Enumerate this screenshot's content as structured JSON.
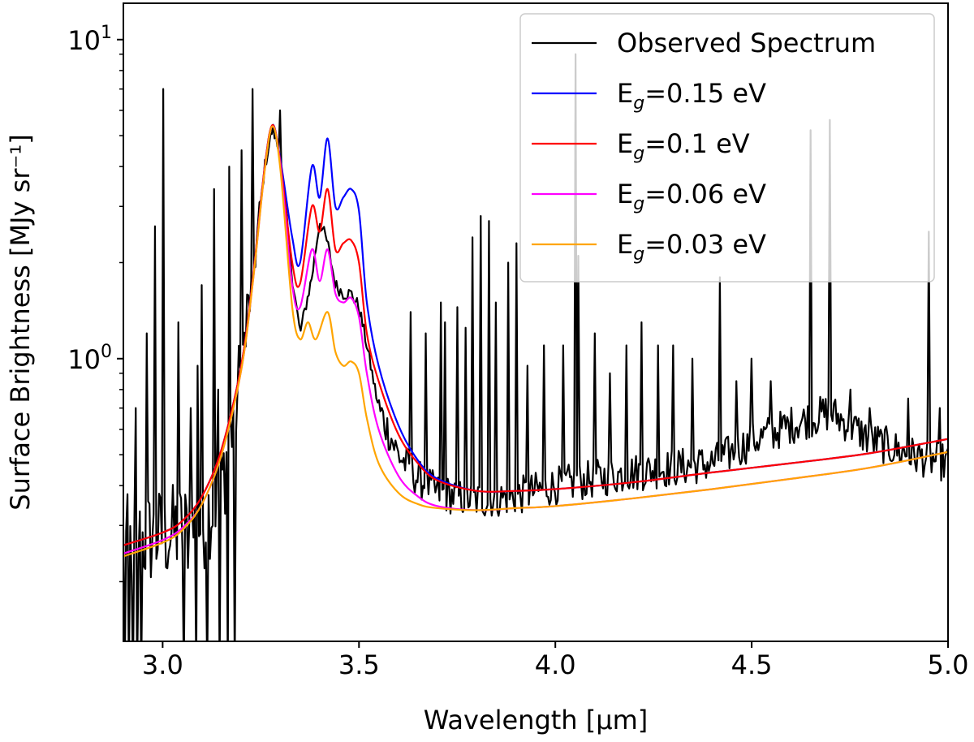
{
  "chart_data": {
    "type": "line",
    "title": "",
    "xlabel": "Wavelength [μm]",
    "ylabel": "Surface Brightness [MJy sr⁻¹]",
    "xlim": [
      2.9,
      5.0
    ],
    "ylim": [
      0.13,
      13.0
    ],
    "yscale": "log",
    "x_ticks": [
      3.0,
      3.5,
      4.0,
      4.5,
      5.0
    ],
    "x_tick_labels": [
      "3.0",
      "3.5",
      "4.0",
      "4.5",
      "5.0"
    ],
    "y_ticks": [
      {
        "value": 1,
        "base": "10",
        "exp": "0"
      },
      {
        "value": 10,
        "base": "10",
        "exp": "1"
      }
    ],
    "legend_position": "top-right",
    "legend": [
      {
        "name": "Observed Spectrum",
        "prefix": "Observed Spectrum",
        "sub": "",
        "suffix": "",
        "color": "#000000"
      },
      {
        "name": "E_g=0.15 eV",
        "prefix": "E",
        "sub": "g",
        "suffix": "=0.15 eV",
        "color": "#0000ff"
      },
      {
        "name": "E_g=0.1 eV",
        "prefix": "E",
        "sub": "g",
        "suffix": "=0.1 eV",
        "color": "#ff0000"
      },
      {
        "name": "E_g=0.06 eV",
        "prefix": "E",
        "sub": "g",
        "suffix": "=0.06 eV",
        "color": "#ff00ff"
      },
      {
        "name": "E_g=0.03 eV",
        "prefix": "E",
        "sub": "g",
        "suffix": "=0.03 eV",
        "color": "#ffa500"
      }
    ],
    "series": [
      {
        "name": "E_g=0.15 eV",
        "color": "#0000ff",
        "points": [
          [
            2.9,
            0.26
          ],
          [
            3.0,
            0.285
          ],
          [
            3.05,
            0.31
          ],
          [
            3.1,
            0.37
          ],
          [
            3.15,
            0.52
          ],
          [
            3.2,
            0.95
          ],
          [
            3.23,
            1.8
          ],
          [
            3.26,
            4.0
          ],
          [
            3.28,
            5.4
          ],
          [
            3.3,
            4.2
          ],
          [
            3.33,
            2.4
          ],
          [
            3.35,
            2.0
          ],
          [
            3.38,
            4.0
          ],
          [
            3.4,
            3.2
          ],
          [
            3.42,
            4.9
          ],
          [
            3.44,
            3.0
          ],
          [
            3.46,
            3.2
          ],
          [
            3.48,
            3.4
          ],
          [
            3.5,
            2.9
          ],
          [
            3.52,
            1.5
          ],
          [
            3.55,
            0.95
          ],
          [
            3.6,
            0.62
          ],
          [
            3.65,
            0.48
          ],
          [
            3.7,
            0.42
          ],
          [
            3.8,
            0.385
          ],
          [
            3.9,
            0.385
          ],
          [
            4.0,
            0.39
          ],
          [
            4.2,
            0.41
          ],
          [
            4.4,
            0.44
          ],
          [
            4.6,
            0.47
          ],
          [
            4.8,
            0.505
          ],
          [
            5.0,
            0.56
          ]
        ]
      },
      {
        "name": "E_g=0.1 eV",
        "color": "#ff0000",
        "points": [
          [
            2.9,
            0.26
          ],
          [
            3.0,
            0.285
          ],
          [
            3.05,
            0.31
          ],
          [
            3.1,
            0.37
          ],
          [
            3.15,
            0.52
          ],
          [
            3.2,
            0.95
          ],
          [
            3.23,
            1.8
          ],
          [
            3.26,
            4.0
          ],
          [
            3.28,
            5.4
          ],
          [
            3.3,
            4.1
          ],
          [
            3.33,
            2.0
          ],
          [
            3.35,
            1.72
          ],
          [
            3.38,
            3.0
          ],
          [
            3.4,
            2.5
          ],
          [
            3.42,
            3.4
          ],
          [
            3.44,
            2.2
          ],
          [
            3.46,
            2.3
          ],
          [
            3.48,
            2.35
          ],
          [
            3.5,
            2.0
          ],
          [
            3.52,
            1.2
          ],
          [
            3.55,
            0.85
          ],
          [
            3.6,
            0.58
          ],
          [
            3.65,
            0.47
          ],
          [
            3.7,
            0.415
          ],
          [
            3.8,
            0.385
          ],
          [
            3.9,
            0.385
          ],
          [
            4.0,
            0.39
          ],
          [
            4.2,
            0.41
          ],
          [
            4.4,
            0.44
          ],
          [
            4.6,
            0.47
          ],
          [
            4.8,
            0.505
          ],
          [
            5.0,
            0.56
          ]
        ]
      },
      {
        "name": "E_g=0.06 eV",
        "color": "#ff00ff",
        "points": [
          [
            2.9,
            0.245
          ],
          [
            3.0,
            0.27
          ],
          [
            3.05,
            0.295
          ],
          [
            3.1,
            0.35
          ],
          [
            3.15,
            0.5
          ],
          [
            3.2,
            0.92
          ],
          [
            3.23,
            1.75
          ],
          [
            3.26,
            3.9
          ],
          [
            3.28,
            5.35
          ],
          [
            3.3,
            4.0
          ],
          [
            3.33,
            1.7
          ],
          [
            3.35,
            1.45
          ],
          [
            3.38,
            2.2
          ],
          [
            3.4,
            1.75
          ],
          [
            3.42,
            2.2
          ],
          [
            3.44,
            1.6
          ],
          [
            3.46,
            1.5
          ],
          [
            3.48,
            1.55
          ],
          [
            3.5,
            1.35
          ],
          [
            3.52,
            0.9
          ],
          [
            3.55,
            0.6
          ],
          [
            3.6,
            0.43
          ],
          [
            3.65,
            0.37
          ],
          [
            3.7,
            0.345
          ],
          [
            3.8,
            0.335
          ],
          [
            3.9,
            0.34
          ],
          [
            4.0,
            0.345
          ],
          [
            4.2,
            0.365
          ],
          [
            4.4,
            0.39
          ],
          [
            4.6,
            0.42
          ],
          [
            4.8,
            0.455
          ],
          [
            5.0,
            0.51
          ]
        ]
      },
      {
        "name": "E_g=0.03 eV",
        "color": "#ffa500",
        "points": [
          [
            2.9,
            0.24
          ],
          [
            3.0,
            0.265
          ],
          [
            3.05,
            0.29
          ],
          [
            3.1,
            0.35
          ],
          [
            3.15,
            0.5
          ],
          [
            3.2,
            0.92
          ],
          [
            3.23,
            1.75
          ],
          [
            3.26,
            3.9
          ],
          [
            3.28,
            5.35
          ],
          [
            3.3,
            3.9
          ],
          [
            3.33,
            1.45
          ],
          [
            3.35,
            1.15
          ],
          [
            3.37,
            1.3
          ],
          [
            3.39,
            1.15
          ],
          [
            3.42,
            1.4
          ],
          [
            3.44,
            1.05
          ],
          [
            3.46,
            0.95
          ],
          [
            3.48,
            0.98
          ],
          [
            3.5,
            0.9
          ],
          [
            3.52,
            0.65
          ],
          [
            3.55,
            0.47
          ],
          [
            3.6,
            0.38
          ],
          [
            3.65,
            0.35
          ],
          [
            3.7,
            0.34
          ],
          [
            3.8,
            0.335
          ],
          [
            3.9,
            0.34
          ],
          [
            4.0,
            0.345
          ],
          [
            4.2,
            0.365
          ],
          [
            4.4,
            0.39
          ],
          [
            4.6,
            0.42
          ],
          [
            4.8,
            0.455
          ],
          [
            5.0,
            0.51
          ]
        ]
      },
      {
        "name": "Observed Spectrum",
        "color": "#000000",
        "base_points": [
          [
            2.9,
            0.26
          ],
          [
            3.0,
            0.28
          ],
          [
            3.1,
            0.3
          ],
          [
            3.15,
            0.4
          ],
          [
            3.2,
            0.9
          ],
          [
            3.23,
            1.8
          ],
          [
            3.26,
            4.0
          ],
          [
            3.28,
            5.3
          ],
          [
            3.3,
            4.3
          ],
          [
            3.33,
            1.8
          ],
          [
            3.35,
            1.2
          ],
          [
            3.38,
            1.8
          ],
          [
            3.4,
            2.7
          ],
          [
            3.42,
            2.3
          ],
          [
            3.44,
            1.7
          ],
          [
            3.46,
            1.6
          ],
          [
            3.48,
            1.6
          ],
          [
            3.5,
            1.45
          ],
          [
            3.52,
            1.1
          ],
          [
            3.55,
            0.7
          ],
          [
            3.6,
            0.5
          ],
          [
            3.65,
            0.42
          ],
          [
            3.7,
            0.38
          ],
          [
            3.8,
            0.36
          ],
          [
            3.9,
            0.37
          ],
          [
            4.0,
            0.4
          ],
          [
            4.2,
            0.44
          ],
          [
            4.4,
            0.47
          ],
          [
            4.5,
            0.55
          ],
          [
            4.6,
            0.62
          ],
          [
            4.7,
            0.68
          ],
          [
            4.8,
            0.56
          ],
          [
            4.9,
            0.5
          ],
          [
            5.0,
            0.47
          ]
        ],
        "noise_amplitude": 0.14,
        "spikes": [
          [
            2.93,
            0.7
          ],
          [
            2.96,
            1.2
          ],
          [
            2.98,
            2.6
          ],
          [
            3.0,
            7.0
          ],
          [
            3.04,
            1.3
          ],
          [
            3.07,
            0.7
          ],
          [
            3.09,
            0.95
          ],
          [
            3.1,
            1.7
          ],
          [
            3.13,
            3.4
          ],
          [
            3.14,
            0.8
          ],
          [
            3.17,
            4.0
          ],
          [
            3.18,
            0.7
          ],
          [
            3.2,
            4.5
          ],
          [
            3.23,
            7.0
          ],
          [
            3.3,
            6.0
          ],
          [
            3.63,
            1.4
          ],
          [
            3.67,
            1.2
          ],
          [
            3.71,
            1.5
          ],
          [
            3.72,
            1.3
          ],
          [
            3.75,
            1.45
          ],
          [
            3.77,
            1.25
          ],
          [
            3.79,
            2.4
          ],
          [
            3.81,
            2.8
          ],
          [
            3.83,
            2.7
          ],
          [
            3.85,
            1.5
          ],
          [
            3.88,
            2.0
          ],
          [
            3.9,
            2.3
          ],
          [
            3.93,
            0.95
          ],
          [
            3.97,
            1.1
          ],
          [
            4.02,
            1.1
          ],
          [
            4.05,
            9.0
          ],
          [
            4.06,
            2.1
          ],
          [
            4.1,
            1.2
          ],
          [
            4.14,
            0.9
          ],
          [
            4.18,
            1.1
          ],
          [
            4.22,
            1.3
          ],
          [
            4.26,
            1.1
          ],
          [
            4.3,
            1.1
          ],
          [
            4.35,
            1.0
          ],
          [
            4.42,
            1.8
          ],
          [
            4.46,
            0.85
          ],
          [
            4.5,
            1.0
          ],
          [
            4.55,
            0.85
          ],
          [
            4.65,
            5.2
          ],
          [
            4.7,
            5.6
          ],
          [
            4.75,
            0.8
          ],
          [
            4.8,
            0.7
          ],
          [
            4.9,
            0.75
          ],
          [
            4.95,
            2.5
          ],
          [
            4.98,
            0.7
          ]
        ]
      }
    ]
  }
}
